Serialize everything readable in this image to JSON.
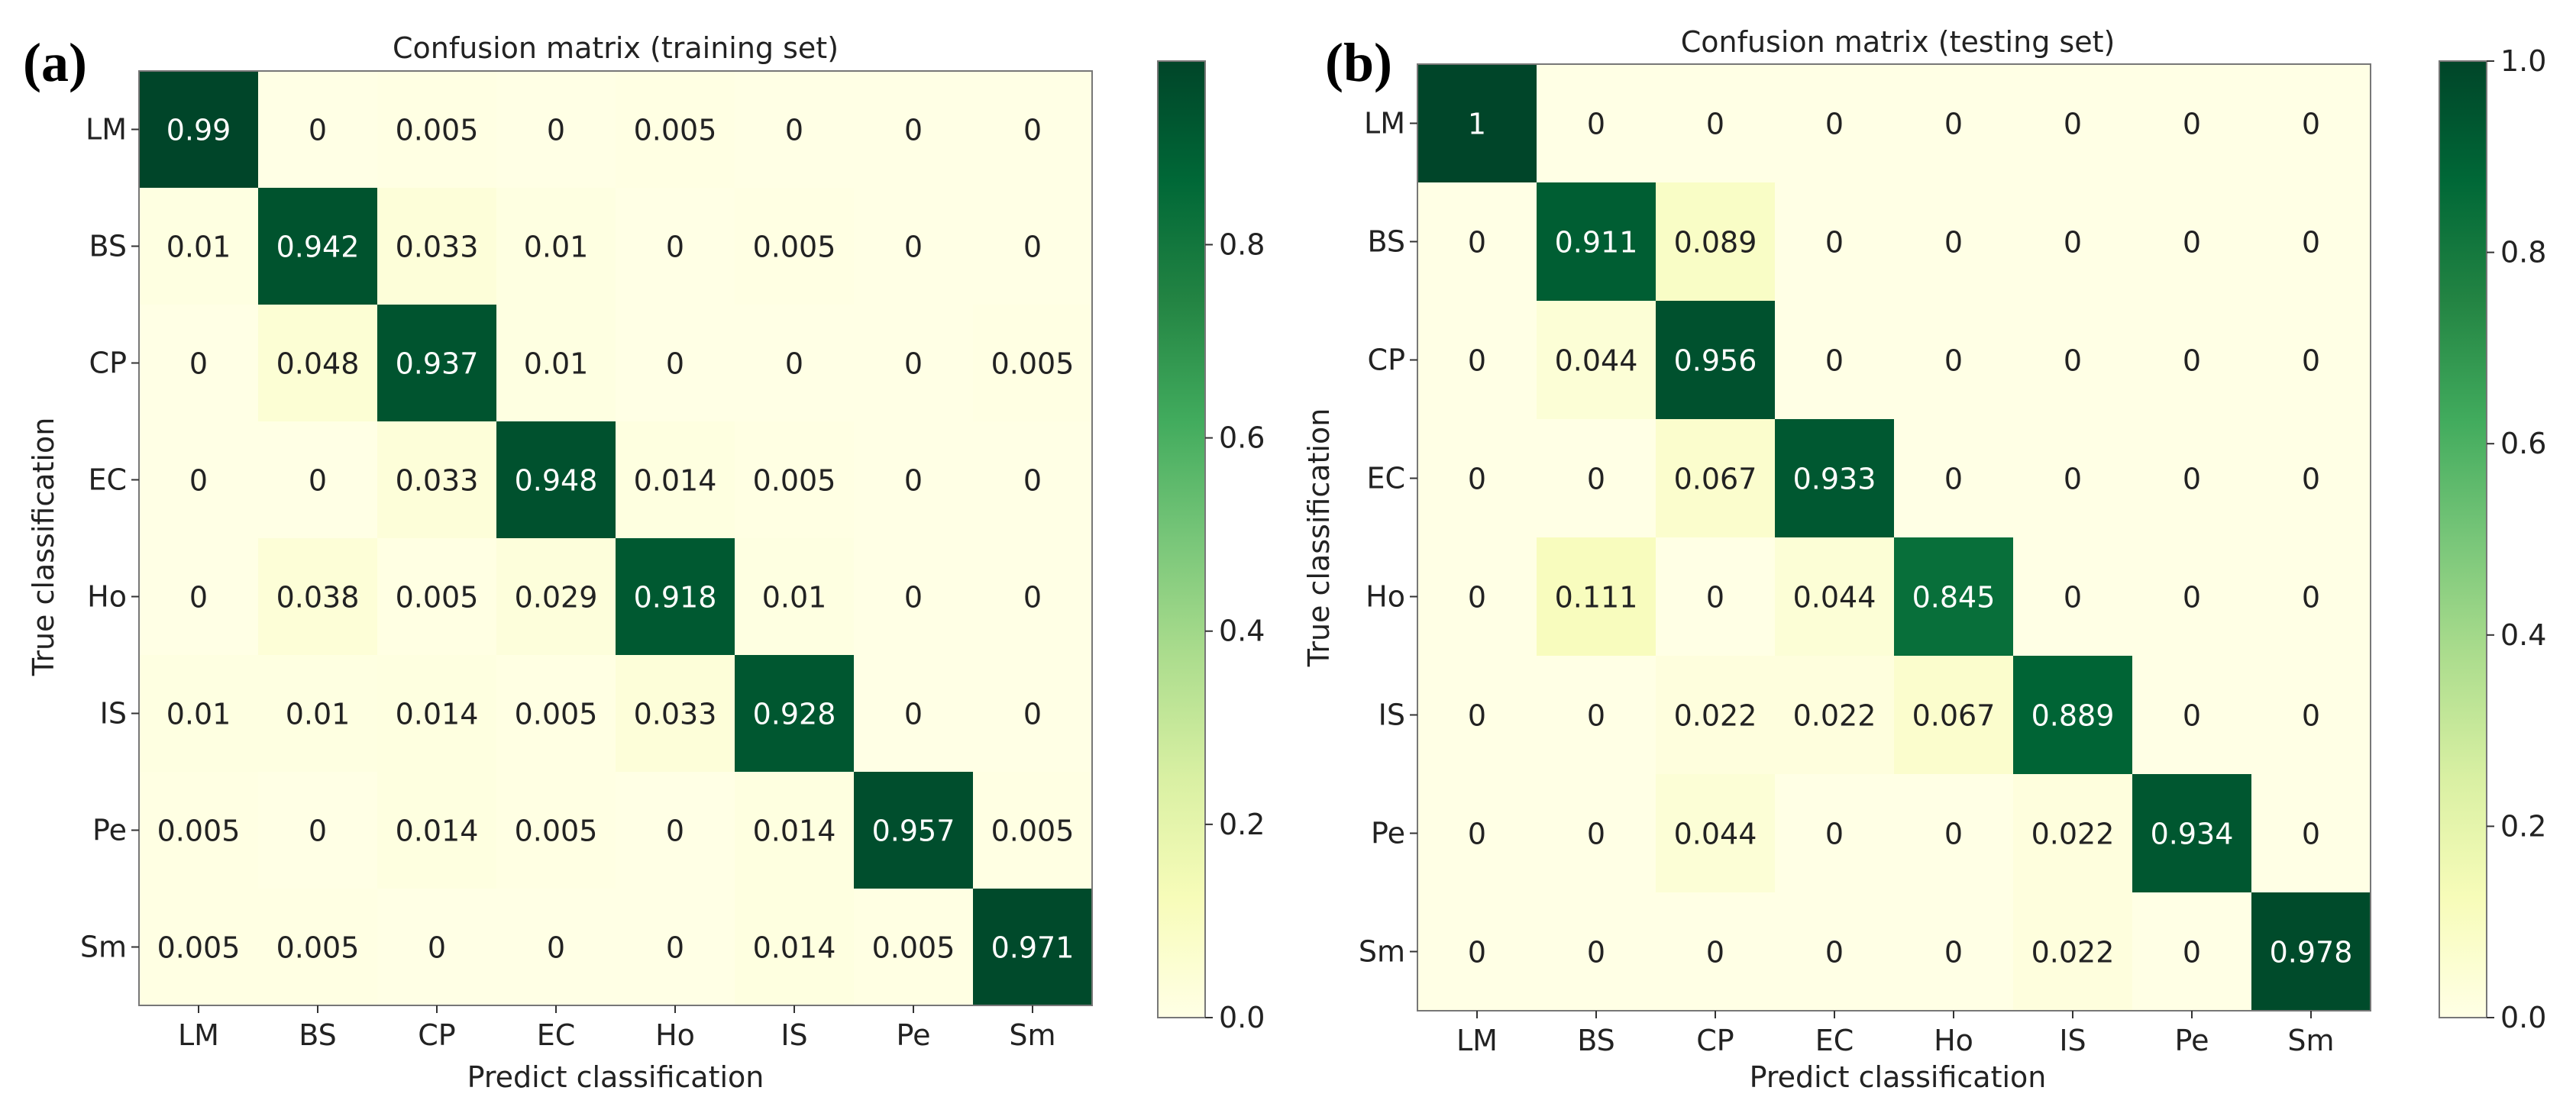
{
  "figure": {
    "panel_a_label": "(a)",
    "panel_b_label": "(b)"
  },
  "chart_data": [
    {
      "type": "heatmap",
      "panel": "(a)",
      "title": "Confusion matrix (training set)",
      "xlabel": "Predict classification",
      "ylabel": "True classification",
      "x_categories": [
        "LM",
        "BS",
        "CP",
        "EC",
        "Ho",
        "IS",
        "Pe",
        "Sm"
      ],
      "y_categories": [
        "LM",
        "BS",
        "CP",
        "EC",
        "Ho",
        "IS",
        "Pe",
        "Sm"
      ],
      "values": [
        [
          0.99,
          0,
          0.005,
          0,
          0.005,
          0,
          0,
          0
        ],
        [
          0.01,
          0.942,
          0.033,
          0.01,
          0,
          0.005,
          0,
          0
        ],
        [
          0,
          0.048,
          0.937,
          0.01,
          0,
          0,
          0,
          0.005
        ],
        [
          0,
          0,
          0.033,
          0.948,
          0.014,
          0.005,
          0,
          0
        ],
        [
          0,
          0.038,
          0.005,
          0.029,
          0.918,
          0.01,
          0,
          0
        ],
        [
          0.01,
          0.01,
          0.014,
          0.005,
          0.033,
          0.928,
          0,
          0
        ],
        [
          0.005,
          0,
          0.014,
          0.005,
          0,
          0.014,
          0.957,
          0.005
        ],
        [
          0.005,
          0.005,
          0,
          0,
          0,
          0.014,
          0.005,
          0.971
        ]
      ],
      "cell_labels": [
        [
          "0.99",
          "0",
          "0.005",
          "0",
          "0.005",
          "0",
          "0",
          "0"
        ],
        [
          "0.01",
          "0.942",
          "0.033",
          "0.01",
          "0",
          "0.005",
          "0",
          "0"
        ],
        [
          "0",
          "0.048",
          "0.937",
          "0.01",
          "0",
          "0",
          "0",
          "0.005"
        ],
        [
          "0",
          "0",
          "0.033",
          "0.948",
          "0.014",
          "0.005",
          "0",
          "0"
        ],
        [
          "0",
          "0.038",
          "0.005",
          "0.029",
          "0.918",
          "0.01",
          "0",
          "0"
        ],
        [
          "0.01",
          "0.01",
          "0.014",
          "0.005",
          "0.033",
          "0.928",
          "0",
          "0"
        ],
        [
          "0.005",
          "0",
          "0.014",
          "0.005",
          "0",
          "0.014",
          "0.957",
          "0.005"
        ],
        [
          "0.005",
          "0.005",
          "0",
          "0",
          "0",
          "0.014",
          "0.005",
          "0.971"
        ]
      ],
      "colormap": "YlGn",
      "vmin": 0,
      "vmax": 0.99,
      "colorbar_ticks": [
        0.0,
        0.2,
        0.4,
        0.6,
        0.8
      ],
      "colorbar_tick_labels": [
        "0.0",
        "0.2",
        "0.4",
        "0.6",
        "0.8"
      ]
    },
    {
      "type": "heatmap",
      "panel": "(b)",
      "title": "Confusion matrix (testing set)",
      "xlabel": "Predict classification",
      "ylabel": "True classification",
      "x_categories": [
        "LM",
        "BS",
        "CP",
        "EC",
        "Ho",
        "IS",
        "Pe",
        "Sm"
      ],
      "y_categories": [
        "LM",
        "BS",
        "CP",
        "EC",
        "Ho",
        "IS",
        "Pe",
        "Sm"
      ],
      "values": [
        [
          1,
          0,
          0,
          0,
          0,
          0,
          0,
          0
        ],
        [
          0,
          0.911,
          0.089,
          0,
          0,
          0,
          0,
          0
        ],
        [
          0,
          0.044,
          0.956,
          0,
          0,
          0,
          0,
          0
        ],
        [
          0,
          0,
          0.067,
          0.933,
          0,
          0,
          0,
          0
        ],
        [
          0,
          0.111,
          0,
          0.044,
          0.845,
          0,
          0,
          0
        ],
        [
          0,
          0,
          0.022,
          0.022,
          0.067,
          0.889,
          0,
          0
        ],
        [
          0,
          0,
          0.044,
          0,
          0,
          0.022,
          0.934,
          0
        ],
        [
          0,
          0,
          0,
          0,
          0,
          0.022,
          0,
          0.978
        ]
      ],
      "cell_labels": [
        [
          "1",
          "0",
          "0",
          "0",
          "0",
          "0",
          "0",
          "0"
        ],
        [
          "0",
          "0.911",
          "0.089",
          "0",
          "0",
          "0",
          "0",
          "0"
        ],
        [
          "0",
          "0.044",
          "0.956",
          "0",
          "0",
          "0",
          "0",
          "0"
        ],
        [
          "0",
          "0",
          "0.067",
          "0.933",
          "0",
          "0",
          "0",
          "0"
        ],
        [
          "0",
          "0.111",
          "0",
          "0.044",
          "0.845",
          "0",
          "0",
          "0"
        ],
        [
          "0",
          "0",
          "0.022",
          "0.022",
          "0.067",
          "0.889",
          "0",
          "0"
        ],
        [
          "0",
          "0",
          "0.044",
          "0",
          "0",
          "0.022",
          "0.934",
          "0"
        ],
        [
          "0",
          "0",
          "0",
          "0",
          "0",
          "0.022",
          "0",
          "0.978"
        ]
      ],
      "colormap": "YlGn",
      "vmin": 0,
      "vmax": 1.0,
      "colorbar_ticks": [
        0.0,
        0.2,
        0.4,
        0.6,
        0.8,
        1.0
      ],
      "colorbar_tick_labels": [
        "0.0",
        "0.2",
        "0.4",
        "0.6",
        "0.8",
        "1.0"
      ]
    }
  ]
}
